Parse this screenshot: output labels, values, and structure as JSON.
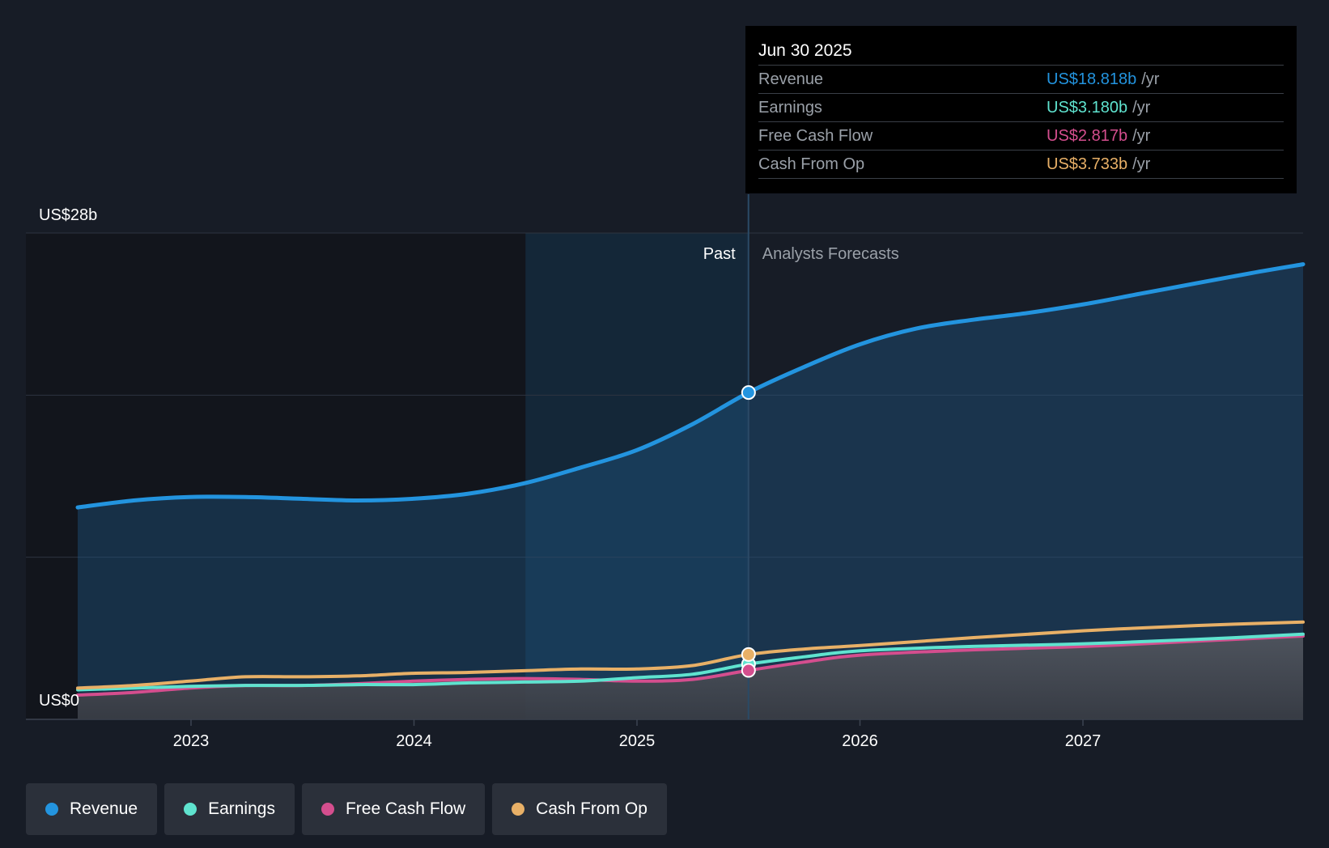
{
  "chart_data": {
    "type": "area",
    "y_top_label": "US$28b",
    "y_bottom_label": "US$0",
    "ylim": [
      0,
      28
    ],
    "xlim": [
      2022.5,
      2027.98
    ],
    "x_ticks": [
      "2023",
      "2024",
      "2025",
      "2026",
      "2027"
    ],
    "x_tick_values": [
      2023,
      2024,
      2025,
      2026,
      2027
    ],
    "forecast_start": 2025.5,
    "highlight_start": 2024.5,
    "region_labels": {
      "past": "Past",
      "forecast": "Analysts Forecasts"
    },
    "grid": true,
    "series": [
      {
        "name": "Revenue",
        "key": "revenue",
        "color": "#2394df",
        "fill": true,
        "points": [
          [
            2022.5,
            12.2
          ],
          [
            2022.75,
            12.6
          ],
          [
            2023.0,
            12.8
          ],
          [
            2023.25,
            12.8
          ],
          [
            2023.5,
            12.7
          ],
          [
            2023.75,
            12.6
          ],
          [
            2024.0,
            12.7
          ],
          [
            2024.25,
            13.0
          ],
          [
            2024.5,
            13.6
          ],
          [
            2024.75,
            14.5
          ],
          [
            2025.0,
            15.5
          ],
          [
            2025.25,
            17.0
          ],
          [
            2025.5,
            18.818
          ],
          [
            2025.75,
            20.3
          ],
          [
            2026.0,
            21.6
          ],
          [
            2026.25,
            22.5
          ],
          [
            2026.5,
            23.0
          ],
          [
            2026.75,
            23.4
          ],
          [
            2027.0,
            23.9
          ],
          [
            2027.25,
            24.5
          ],
          [
            2027.5,
            25.1
          ],
          [
            2027.75,
            25.7
          ],
          [
            2027.98,
            26.2
          ]
        ]
      },
      {
        "name": "Earnings",
        "key": "earnings",
        "color": "#5fe3cf",
        "fill": false,
        "points": [
          [
            2022.5,
            1.7
          ],
          [
            2022.75,
            1.8
          ],
          [
            2023.0,
            1.9
          ],
          [
            2023.25,
            1.95
          ],
          [
            2023.5,
            1.95
          ],
          [
            2023.75,
            2.0
          ],
          [
            2024.0,
            2.0
          ],
          [
            2024.25,
            2.1
          ],
          [
            2024.5,
            2.15
          ],
          [
            2024.75,
            2.2
          ],
          [
            2025.0,
            2.4
          ],
          [
            2025.25,
            2.6
          ],
          [
            2025.5,
            3.18
          ],
          [
            2025.75,
            3.6
          ],
          [
            2026.0,
            3.95
          ],
          [
            2026.5,
            4.2
          ],
          [
            2027.0,
            4.35
          ],
          [
            2027.5,
            4.6
          ],
          [
            2027.98,
            4.9
          ]
        ]
      },
      {
        "name": "Free Cash Flow",
        "key": "fcf",
        "color": "#d44e8e",
        "fill": true,
        "points": [
          [
            2022.5,
            1.4
          ],
          [
            2022.75,
            1.55
          ],
          [
            2023.0,
            1.8
          ],
          [
            2023.25,
            1.95
          ],
          [
            2023.5,
            1.95
          ],
          [
            2023.75,
            2.05
          ],
          [
            2024.0,
            2.2
          ],
          [
            2024.25,
            2.3
          ],
          [
            2024.5,
            2.35
          ],
          [
            2024.75,
            2.3
          ],
          [
            2025.0,
            2.2
          ],
          [
            2025.25,
            2.3
          ],
          [
            2025.5,
            2.817
          ],
          [
            2025.75,
            3.3
          ],
          [
            2026.0,
            3.7
          ],
          [
            2026.5,
            4.0
          ],
          [
            2027.0,
            4.2
          ],
          [
            2027.5,
            4.5
          ],
          [
            2027.98,
            4.8
          ]
        ]
      },
      {
        "name": "Cash From Op",
        "key": "cfo",
        "color": "#e8b067",
        "fill": false,
        "points": [
          [
            2022.5,
            1.8
          ],
          [
            2022.75,
            1.95
          ],
          [
            2023.0,
            2.2
          ],
          [
            2023.25,
            2.45
          ],
          [
            2023.5,
            2.45
          ],
          [
            2023.75,
            2.5
          ],
          [
            2024.0,
            2.65
          ],
          [
            2024.25,
            2.7
          ],
          [
            2024.5,
            2.8
          ],
          [
            2024.75,
            2.9
          ],
          [
            2025.0,
            2.9
          ],
          [
            2025.25,
            3.1
          ],
          [
            2025.5,
            3.733
          ],
          [
            2025.75,
            4.05
          ],
          [
            2026.0,
            4.25
          ],
          [
            2026.5,
            4.7
          ],
          [
            2027.0,
            5.1
          ],
          [
            2027.5,
            5.4
          ],
          [
            2027.98,
            5.6
          ]
        ]
      }
    ]
  },
  "tooltip": {
    "date": "Jun 30 2025",
    "rows": [
      {
        "label": "Revenue",
        "value": "US$18.818b",
        "unit": "/yr",
        "color": "#2394df"
      },
      {
        "label": "Earnings",
        "value": "US$3.180b",
        "unit": "/yr",
        "color": "#5fe3cf"
      },
      {
        "label": "Free Cash Flow",
        "value": "US$2.817b",
        "unit": "/yr",
        "color": "#d44e8e"
      },
      {
        "label": "Cash From Op",
        "value": "US$3.733b",
        "unit": "/yr",
        "color": "#e8b067"
      }
    ]
  },
  "legend": [
    {
      "label": "Revenue",
      "color": "#2394df"
    },
    {
      "label": "Earnings",
      "color": "#5fe3cf"
    },
    {
      "label": "Free Cash Flow",
      "color": "#d44e8e"
    },
    {
      "label": "Cash From Op",
      "color": "#e8b067"
    }
  ]
}
